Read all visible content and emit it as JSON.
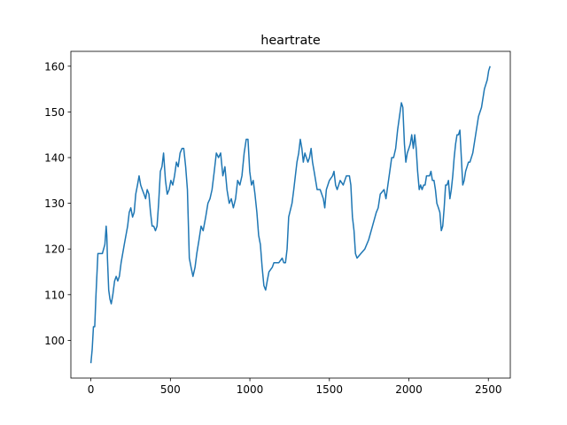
{
  "chart_data": {
    "type": "line",
    "title": "heartrate",
    "color": "#1f77b4",
    "x": [
      0,
      8,
      16,
      24,
      32,
      40,
      44,
      64,
      72,
      80,
      88,
      96,
      100,
      104,
      112,
      120,
      128,
      138,
      149,
      159,
      169,
      179,
      190,
      210,
      231,
      241,
      251,
      262,
      272,
      282,
      293,
      303,
      313,
      323,
      334,
      344,
      354,
      365,
      375,
      385,
      395,
      406,
      416,
      426,
      437,
      447,
      457,
      469,
      480,
      492,
      503,
      515,
      526,
      538,
      549,
      561,
      573,
      584,
      596,
      607,
      619,
      630,
      642,
      655,
      666,
      680,
      693,
      706,
      722,
      736,
      749,
      762,
      776,
      789,
      803,
      816,
      830,
      843,
      856,
      870,
      883,
      896,
      910,
      923,
      937,
      950,
      964,
      977,
      988,
      999,
      1010,
      1021,
      1032,
      1044,
      1055,
      1066,
      1077,
      1088,
      1099,
      1109,
      1120,
      1141,
      1151,
      1161,
      1182,
      1203,
      1213,
      1224,
      1234,
      1244,
      1265,
      1276,
      1286,
      1296,
      1307,
      1317,
      1327,
      1336,
      1346,
      1365,
      1375,
      1385,
      1394,
      1404,
      1423,
      1442,
      1462,
      1471,
      1481,
      1500,
      1520,
      1529,
      1539,
      1549,
      1568,
      1587,
      1597,
      1607,
      1626,
      1635,
      1645,
      1655,
      1664,
      1674,
      1698,
      1723,
      1747,
      1771,
      1795,
      1807,
      1820,
      1844,
      1856,
      1868,
      1880,
      1892,
      1904,
      1917,
      1929,
      1941,
      1953,
      1962,
      1972,
      1981,
      1990,
      2000,
      2009,
      2018,
      2028,
      2037,
      2046,
      2055,
      2065,
      2074,
      2083,
      2093,
      2102,
      2111,
      2130,
      2139,
      2148,
      2158,
      2167,
      2176,
      2186,
      2195,
      2204,
      2213,
      2222,
      2231,
      2240,
      2249,
      2258,
      2267,
      2276,
      2285,
      2294,
      2303,
      2312,
      2321,
      2330,
      2339,
      2348,
      2357,
      2366,
      2375,
      2384,
      2402,
      2420,
      2438,
      2457,
      2475,
      2493,
      2502,
      2511
    ],
    "values": [
      95,
      98,
      103,
      103,
      110,
      116,
      119,
      119,
      119,
      120,
      121,
      125,
      123,
      118,
      111,
      109,
      108,
      110,
      113,
      114,
      113,
      114,
      117,
      121,
      125,
      128,
      129,
      127,
      128,
      132,
      134,
      136,
      134,
      133,
      132,
      131,
      133,
      132,
      128,
      125,
      125,
      124,
      125,
      130,
      137,
      138,
      141,
      135,
      132,
      133,
      135,
      134,
      136,
      139,
      138,
      141,
      142,
      142,
      138,
      133,
      118,
      116,
      114,
      116,
      119,
      122,
      125,
      124,
      127,
      130,
      131,
      133,
      137,
      141,
      140,
      141,
      136,
      138,
      133,
      130,
      131,
      129,
      131,
      135,
      134,
      136,
      141,
      144,
      144,
      137,
      134,
      135,
      132,
      128,
      123,
      121,
      116,
      112,
      111,
      113,
      115,
      116,
      117,
      117,
      117,
      118,
      117,
      117,
      120,
      127,
      130,
      133,
      136,
      139,
      141,
      144,
      142,
      139,
      141,
      139,
      140,
      142,
      139,
      137,
      133,
      133,
      131,
      129,
      133,
      135,
      136,
      137,
      134,
      133,
      135,
      134,
      135,
      136,
      136,
      134,
      127,
      124,
      119,
      118,
      119,
      120,
      122,
      125,
      128,
      129,
      132,
      133,
      131,
      134,
      137,
      140,
      140,
      142,
      146,
      149,
      152,
      151,
      143,
      139,
      141,
      142,
      143,
      145,
      142,
      145,
      142,
      137,
      133,
      134,
      133,
      134,
      134,
      136,
      136,
      137,
      135,
      135,
      133,
      130,
      129,
      128,
      124,
      125,
      129,
      134,
      134,
      135,
      131,
      133,
      136,
      140,
      143,
      145,
      145,
      146,
      140,
      134,
      135,
      137,
      138,
      139,
      139,
      141,
      145,
      149,
      151,
      155,
      157,
      159,
      160
    ],
    "xlim": [
      -126,
      2638
    ],
    "xticks": [
      0,
      500,
      1000,
      1500,
      2000,
      2500
    ],
    "ylim": [
      91.75,
      163.25
    ],
    "yticks": [
      100,
      110,
      120,
      130,
      140,
      150,
      160
    ]
  }
}
